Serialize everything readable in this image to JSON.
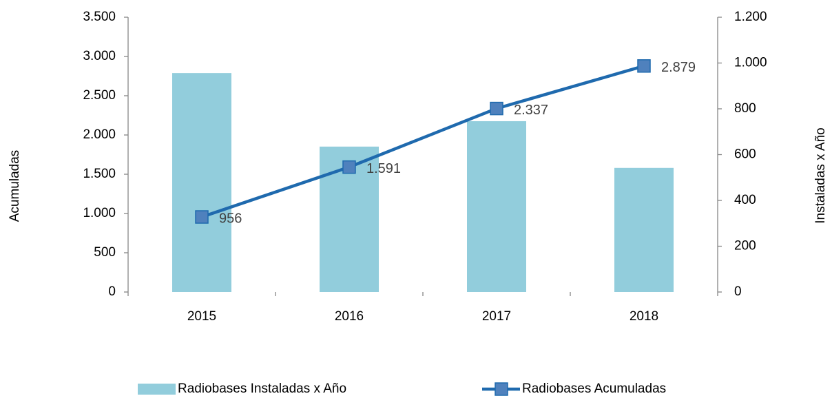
{
  "chart_data": {
    "type": "bar",
    "categories": [
      "2015",
      "2016",
      "2017",
      "2018"
    ],
    "series": [
      {
        "name": "Radiobases Instaladas x Año",
        "type": "bar",
        "axis": "y2",
        "color": "#92cddc",
        "values": [
          956,
          635,
          746,
          542
        ]
      },
      {
        "name": "Radiobases Acumuladas",
        "type": "line",
        "axis": "y",
        "color": "#1f6aae",
        "marker_color": "#4f81bd",
        "values": [
          956,
          1591,
          2337,
          2879
        ],
        "value_labels": [
          "956",
          "1.591",
          "2.337",
          "2.879"
        ]
      }
    ],
    "ylabel": "Acumuladas",
    "y2label": "Instaladas x Año",
    "ylim": [
      0,
      3500
    ],
    "yticks": [
      0,
      500,
      {
        "value": 1000,
        "label": "1.000"
      },
      {
        "value": 1500,
        "label": "1.500"
      },
      {
        "value": 2000,
        "label": "2.000"
      },
      {
        "value": 2500,
        "label": "2.500"
      },
      {
        "value": 3000,
        "label": "3.000"
      },
      {
        "value": 3500,
        "label": "3.500"
      }
    ],
    "y2lim": [
      0,
      1200
    ],
    "y2ticks": [
      0,
      200,
      400,
      600,
      800,
      {
        "value": 1000,
        "label": "1.000"
      },
      {
        "value": 1200,
        "label": "1.200"
      }
    ],
    "grid": false,
    "legend": "bottom"
  }
}
